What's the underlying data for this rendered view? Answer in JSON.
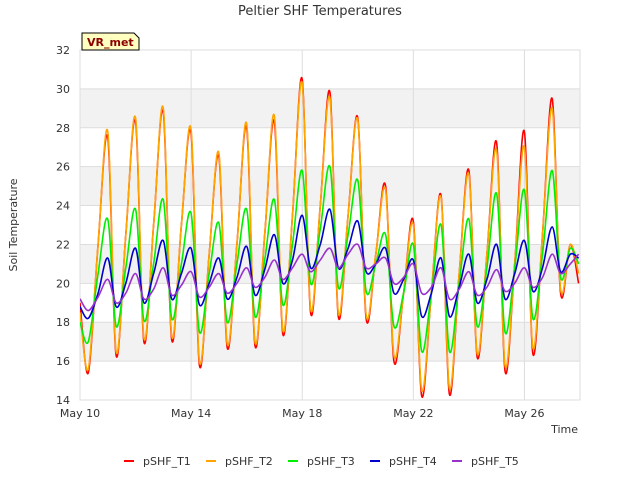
{
  "chart_data": {
    "type": "line",
    "title": "Peltier SHF Temperatures",
    "xlabel": "Time",
    "ylabel": "Soil Temperature",
    "badge": "VR_met",
    "xlim": [
      0,
      18
    ],
    "ylim": [
      14,
      32
    ],
    "x_ticks": [
      {
        "x": 0,
        "label": "May 10"
      },
      {
        "x": 4,
        "label": "May 14"
      },
      {
        "x": 8,
        "label": "May 18"
      },
      {
        "x": 12,
        "label": "May 22"
      },
      {
        "x": 16,
        "label": "May 26"
      }
    ],
    "y_ticks": [
      14,
      16,
      18,
      20,
      22,
      24,
      26,
      28,
      30,
      32
    ],
    "grid": true,
    "legend_position": "bottom",
    "x_unit": "days after May 10",
    "series": [
      {
        "name": "pSHF_T1",
        "color": "#ff0000",
        "x": [
          0.0,
          0.3,
          0.65,
          1.0,
          1.3,
          1.65,
          2.0,
          2.3,
          2.65,
          3.0,
          3.3,
          3.65,
          4.0,
          4.3,
          4.65,
          5.0,
          5.3,
          5.65,
          6.0,
          6.3,
          6.65,
          7.0,
          7.3,
          7.65,
          8.0,
          8.3,
          8.65,
          9.0,
          9.3,
          9.65,
          10.0,
          10.3,
          10.65,
          11.0,
          11.3,
          11.65,
          12.0,
          12.3,
          12.65,
          13.0,
          13.3,
          13.65,
          14.0,
          14.3,
          14.65,
          15.0,
          15.3,
          15.65,
          16.0,
          16.3,
          16.65,
          17.0,
          17.3,
          17.65,
          17.95
        ],
        "y": [
          19.0,
          15.4,
          22.0,
          27.5,
          16.3,
          22.5,
          28.3,
          17.0,
          23.0,
          28.8,
          17.1,
          23.0,
          27.7,
          15.8,
          21.5,
          26.5,
          16.7,
          22.0,
          28.0,
          16.8,
          22.5,
          28.3,
          17.4,
          23.5,
          30.5,
          18.5,
          24.0,
          29.8,
          18.3,
          23.5,
          28.5,
          18.2,
          21.5,
          25.0,
          16.0,
          19.5,
          23.2,
          14.2,
          19.5,
          24.5,
          14.3,
          20.5,
          25.8,
          16.2,
          21.5,
          27.2,
          15.5,
          21.0,
          27.8,
          16.4,
          22.5,
          29.5,
          19.5,
          22.0,
          20.0
        ]
      },
      {
        "name": "pSHF_T2",
        "color": "#ffa500",
        "x": [
          0.0,
          0.3,
          0.65,
          1.0,
          1.3,
          1.65,
          2.0,
          2.3,
          2.65,
          3.0,
          3.3,
          3.65,
          4.0,
          4.3,
          4.65,
          5.0,
          5.3,
          5.65,
          6.0,
          6.3,
          6.65,
          7.0,
          7.3,
          7.65,
          8.0,
          8.3,
          8.65,
          9.0,
          9.3,
          9.65,
          10.0,
          10.3,
          10.65,
          11.0,
          11.3,
          11.65,
          12.0,
          12.3,
          12.65,
          13.0,
          13.3,
          13.65,
          14.0,
          14.3,
          14.65,
          15.0,
          15.3,
          15.65,
          16.0,
          16.3,
          16.65,
          17.0,
          17.3,
          17.65,
          17.95
        ],
        "y": [
          18.5,
          15.6,
          22.0,
          27.8,
          16.5,
          22.5,
          28.5,
          17.2,
          23.0,
          29.0,
          17.3,
          23.0,
          27.9,
          16.0,
          21.5,
          26.7,
          16.9,
          22.0,
          28.2,
          17.0,
          22.5,
          28.6,
          17.6,
          23.5,
          30.3,
          18.7,
          24.0,
          29.5,
          18.5,
          23.5,
          28.4,
          18.4,
          21.5,
          24.8,
          16.3,
          19.5,
          23.0,
          14.5,
          19.5,
          24.4,
          14.6,
          20.5,
          25.6,
          16.4,
          21.5,
          26.8,
          15.8,
          21.0,
          27.0,
          16.7,
          22.5,
          29.0,
          19.7,
          22.0,
          20.5
        ]
      },
      {
        "name": "pSHF_T3",
        "color": "#00ee00",
        "x": [
          0.0,
          0.3,
          0.65,
          1.0,
          1.3,
          1.65,
          2.0,
          2.3,
          2.65,
          3.0,
          3.3,
          3.65,
          4.0,
          4.3,
          4.65,
          5.0,
          5.3,
          5.65,
          6.0,
          6.3,
          6.65,
          7.0,
          7.3,
          7.65,
          8.0,
          8.3,
          8.65,
          9.0,
          9.3,
          9.65,
          10.0,
          10.3,
          10.65,
          11.0,
          11.3,
          11.65,
          12.0,
          12.3,
          12.65,
          13.0,
          13.3,
          13.65,
          14.0,
          14.3,
          14.65,
          15.0,
          15.3,
          15.65,
          16.0,
          16.3,
          16.65,
          17.0,
          17.3,
          17.65,
          17.95
        ],
        "y": [
          18.0,
          17.0,
          20.5,
          23.3,
          17.8,
          20.8,
          23.8,
          18.1,
          21.0,
          24.3,
          18.2,
          21.0,
          23.6,
          17.5,
          20.5,
          23.1,
          18.0,
          21.0,
          23.8,
          18.3,
          21.2,
          24.3,
          18.9,
          22.0,
          25.8,
          20.0,
          22.8,
          26.0,
          19.8,
          22.5,
          25.3,
          19.6,
          21.0,
          22.5,
          17.8,
          19.5,
          22.0,
          16.5,
          19.5,
          23.0,
          16.5,
          20.0,
          23.3,
          17.8,
          20.8,
          24.6,
          17.5,
          20.8,
          24.8,
          18.2,
          21.5,
          25.8,
          20.3,
          21.8,
          21.0
        ]
      },
      {
        "name": "pSHF_T4",
        "color": "#0000cc",
        "x": [
          0.0,
          0.3,
          0.65,
          1.0,
          1.3,
          1.65,
          2.0,
          2.3,
          2.65,
          3.0,
          3.3,
          3.65,
          4.0,
          4.3,
          4.65,
          5.0,
          5.3,
          5.65,
          6.0,
          6.3,
          6.65,
          7.0,
          7.3,
          7.65,
          8.0,
          8.3,
          8.65,
          9.0,
          9.3,
          9.65,
          10.0,
          10.3,
          10.65,
          11.0,
          11.3,
          11.65,
          12.0,
          12.3,
          12.65,
          13.0,
          13.3,
          13.65,
          14.0,
          14.3,
          14.65,
          15.0,
          15.3,
          15.65,
          16.0,
          16.3,
          16.65,
          17.0,
          17.3,
          17.65,
          17.95
        ],
        "y": [
          18.8,
          18.2,
          19.5,
          21.3,
          18.8,
          20.0,
          21.8,
          19.0,
          20.5,
          22.2,
          19.2,
          20.5,
          21.8,
          18.9,
          20.0,
          21.3,
          19.2,
          20.3,
          21.9,
          19.4,
          20.7,
          22.5,
          20.0,
          21.2,
          23.5,
          20.8,
          22.0,
          23.8,
          20.8,
          21.8,
          23.2,
          20.6,
          21.0,
          21.8,
          19.5,
          20.2,
          21.2,
          18.3,
          19.5,
          21.3,
          18.3,
          19.8,
          21.5,
          19.0,
          20.2,
          22.0,
          19.2,
          20.5,
          22.2,
          19.6,
          20.8,
          22.9,
          20.6,
          21.5,
          21.3
        ]
      },
      {
        "name": "pSHF_T5",
        "color": "#9932cc",
        "x": [
          0.0,
          0.3,
          0.65,
          1.0,
          1.3,
          1.65,
          2.0,
          2.3,
          2.65,
          3.0,
          3.3,
          3.65,
          4.0,
          4.3,
          4.65,
          5.0,
          5.3,
          5.65,
          6.0,
          6.3,
          6.65,
          7.0,
          7.3,
          7.65,
          8.0,
          8.3,
          8.65,
          9.0,
          9.3,
          9.65,
          10.0,
          10.3,
          10.65,
          11.0,
          11.3,
          11.65,
          12.0,
          12.3,
          12.65,
          13.0,
          13.3,
          13.65,
          14.0,
          14.3,
          14.65,
          15.0,
          15.3,
          15.65,
          16.0,
          16.3,
          16.65,
          17.0,
          17.3,
          17.65,
          17.95
        ],
        "y": [
          19.2,
          18.6,
          19.3,
          20.2,
          19.0,
          19.5,
          20.5,
          19.2,
          19.7,
          20.8,
          19.4,
          19.9,
          20.6,
          19.3,
          19.8,
          20.5,
          19.5,
          20.0,
          20.8,
          19.8,
          20.3,
          21.2,
          20.2,
          20.8,
          21.5,
          20.6,
          21.2,
          21.8,
          20.8,
          21.5,
          22.0,
          20.8,
          21.0,
          21.3,
          20.0,
          20.3,
          21.0,
          19.5,
          19.8,
          20.8,
          19.2,
          19.7,
          20.6,
          19.4,
          19.8,
          20.7,
          19.6,
          20.0,
          20.8,
          19.8,
          20.3,
          21.5,
          20.5,
          21.0,
          21.5
        ]
      }
    ]
  }
}
